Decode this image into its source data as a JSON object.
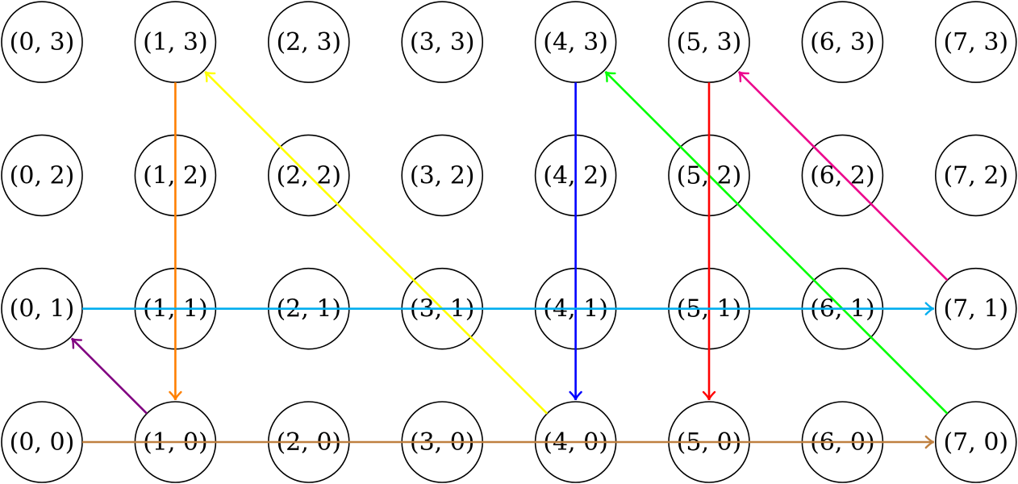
{
  "grid": {
    "columns": 8,
    "rows": 4
  },
  "nodes": [
    {
      "i": 0,
      "j": 3,
      "label": "(0, 3)"
    },
    {
      "i": 1,
      "j": 3,
      "label": "(1, 3)"
    },
    {
      "i": 2,
      "j": 3,
      "label": "(2, 3)"
    },
    {
      "i": 3,
      "j": 3,
      "label": "(3, 3)"
    },
    {
      "i": 4,
      "j": 3,
      "label": "(4, 3)"
    },
    {
      "i": 5,
      "j": 3,
      "label": "(5, 3)"
    },
    {
      "i": 6,
      "j": 3,
      "label": "(6, 3)"
    },
    {
      "i": 7,
      "j": 3,
      "label": "(7, 3)"
    },
    {
      "i": 0,
      "j": 2,
      "label": "(0, 2)"
    },
    {
      "i": 1,
      "j": 2,
      "label": "(1, 2)"
    },
    {
      "i": 2,
      "j": 2,
      "label": "(2, 2)"
    },
    {
      "i": 3,
      "j": 2,
      "label": "(3, 2)"
    },
    {
      "i": 4,
      "j": 2,
      "label": "(4, 2)"
    },
    {
      "i": 5,
      "j": 2,
      "label": "(5, 2)"
    },
    {
      "i": 6,
      "j": 2,
      "label": "(6, 2)"
    },
    {
      "i": 7,
      "j": 2,
      "label": "(7, 2)"
    },
    {
      "i": 0,
      "j": 1,
      "label": "(0, 1)"
    },
    {
      "i": 1,
      "j": 1,
      "label": "(1, 1)"
    },
    {
      "i": 2,
      "j": 1,
      "label": "(2, 1)"
    },
    {
      "i": 3,
      "j": 1,
      "label": "(3, 1)"
    },
    {
      "i": 4,
      "j": 1,
      "label": "(4, 1)"
    },
    {
      "i": 5,
      "j": 1,
      "label": "(5, 1)"
    },
    {
      "i": 6,
      "j": 1,
      "label": "(6, 1)"
    },
    {
      "i": 7,
      "j": 1,
      "label": "(7, 1)"
    },
    {
      "i": 0,
      "j": 0,
      "label": "(0, 0)"
    },
    {
      "i": 1,
      "j": 0,
      "label": "(1, 0)"
    },
    {
      "i": 2,
      "j": 0,
      "label": "(2, 0)"
    },
    {
      "i": 3,
      "j": 0,
      "label": "(3, 0)"
    },
    {
      "i": 4,
      "j": 0,
      "label": "(4, 0)"
    },
    {
      "i": 5,
      "j": 0,
      "label": "(5, 0)"
    },
    {
      "i": 6,
      "j": 0,
      "label": "(6, 0)"
    },
    {
      "i": 7,
      "j": 0,
      "label": "(7, 0)"
    }
  ],
  "edges": [
    {
      "name": "orange",
      "from": [
        1,
        3
      ],
      "to": [
        1,
        0
      ],
      "color": "#ff8000"
    },
    {
      "name": "yellow",
      "from": [
        4,
        0
      ],
      "to": [
        1,
        3
      ],
      "color": "#ffff00"
    },
    {
      "name": "blue",
      "from": [
        4,
        3
      ],
      "to": [
        4,
        0
      ],
      "color": "#0000ff"
    },
    {
      "name": "green",
      "from": [
        7,
        0
      ],
      "to": [
        4,
        3
      ],
      "color": "#00ff00"
    },
    {
      "name": "red",
      "from": [
        5,
        3
      ],
      "to": [
        5,
        0
      ],
      "color": "#ff0000"
    },
    {
      "name": "magenta",
      "from": [
        7,
        1
      ],
      "to": [
        5,
        3
      ],
      "color": "#ec008c"
    },
    {
      "name": "cyan",
      "from": [
        0,
        1
      ],
      "to": [
        7,
        1
      ],
      "color": "#00aeef"
    },
    {
      "name": "purple",
      "from": [
        1,
        0
      ],
      "to": [
        0,
        1
      ],
      "color": "#800080"
    },
    {
      "name": "brown",
      "from": [
        0,
        0
      ],
      "to": [
        7,
        0
      ],
      "color": "#bf8040"
    }
  ]
}
